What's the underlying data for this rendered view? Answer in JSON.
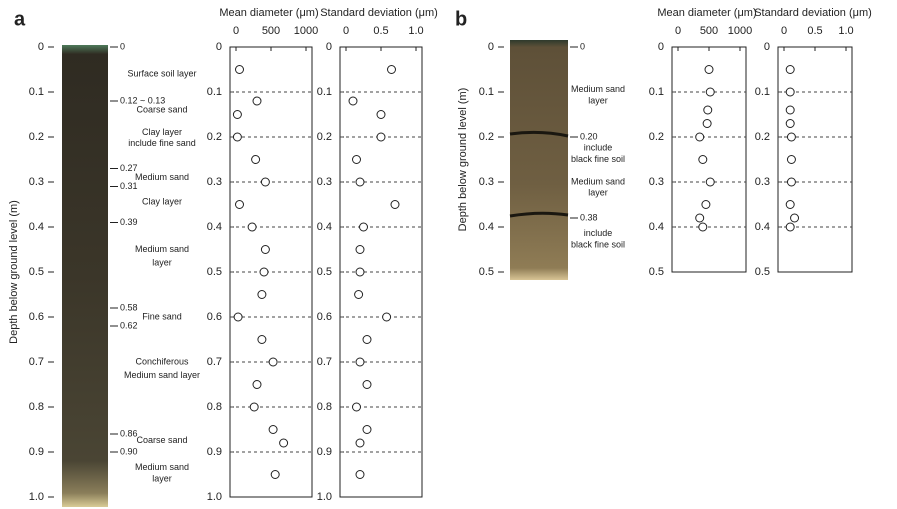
{
  "panels": [
    {
      "label": "a",
      "core": {
        "ylabel": "Depth below ground level (m)",
        "ylim": [
          0,
          1
        ],
        "yticks": [
          0,
          0.1,
          0.2,
          0.3,
          0.4,
          0.5,
          0.6,
          0.7,
          0.8,
          0.9,
          {
            "value": 1,
            "label": "1.0"
          }
        ],
        "marks": [
          {
            "value": 0,
            "label": "0"
          },
          {
            "value": 0.12,
            "label": "0.12 ~ 0.13"
          },
          {
            "value": 0.27,
            "label": "0.27"
          },
          {
            "value": 0.31,
            "label": "0.31"
          },
          {
            "value": 0.39,
            "label": "0.39"
          },
          {
            "value": 0.58,
            "label": "0.58"
          },
          {
            "value": 0.62,
            "label": "0.62"
          },
          {
            "value": 0.86,
            "label": "0.86"
          },
          {
            "value": 0.9,
            "label": "0.90"
          }
        ],
        "layers": [
          [
            "Surface soil layer"
          ],
          [
            "Coarse sand"
          ],
          [
            "Clay layer",
            "include fine sand"
          ],
          [
            "Medium sand"
          ],
          [
            "Clay layer"
          ],
          [
            "Medium sand",
            "layer"
          ],
          [
            "Fine sand"
          ],
          [
            "Conchiferous",
            "Medium sand layer"
          ],
          [
            "Coarse sand"
          ],
          [
            "Medium sand",
            "layer"
          ]
        ]
      }
    },
    {
      "label": "b",
      "core": {
        "ylabel": "Depth below ground level (m)",
        "ylim": [
          0,
          0.5
        ],
        "yticks": [
          0,
          0.1,
          0.2,
          0.3,
          0.4,
          0.5
        ],
        "marks": [
          {
            "value": 0,
            "label": "0"
          },
          {
            "value": 0.2,
            "label": "0.20"
          },
          {
            "value": 0.38,
            "label": "0.38"
          }
        ],
        "layers": [
          [
            "Medium sand",
            "layer"
          ],
          [
            "include",
            "black fine soil"
          ],
          [
            "Medium sand",
            "layer"
          ],
          [
            "include",
            "black fine soil"
          ]
        ]
      }
    }
  ],
  "chart_data": [
    {
      "type": "scatter",
      "title": "Mean diameter (μm)",
      "grid": true,
      "x": [
        50,
        300,
        20,
        20,
        280,
        420,
        50,
        230,
        420,
        400,
        370,
        30,
        370,
        530,
        300,
        260,
        530,
        680,
        560
      ],
      "y": [
        0.05,
        0.12,
        0.15,
        0.2,
        0.25,
        0.3,
        0.35,
        0.4,
        0.45,
        0.5,
        0.55,
        0.6,
        0.65,
        0.7,
        0.75,
        0.8,
        0.85,
        0.88,
        0.95
      ],
      "xlim": [
        0,
        1000
      ],
      "xticks": [
        0,
        500,
        1000
      ],
      "ylim": [
        0,
        1
      ],
      "yticks": [
        0,
        0.1,
        0.2,
        0.3,
        0.4,
        0.5,
        0.6,
        0.7,
        0.8,
        0.9,
        {
          "value": 1,
          "label": "1.0"
        }
      ]
    },
    {
      "type": "scatter",
      "title": "Standard deviation (μm)",
      "grid": true,
      "x": [
        0.65,
        0.1,
        0.5,
        0.5,
        0.15,
        0.2,
        0.7,
        0.25,
        0.2,
        0.2,
        0.18,
        0.58,
        0.3,
        0.2,
        0.3,
        0.15,
        0.3,
        0.2,
        0.2
      ],
      "y": [
        0.05,
        0.12,
        0.15,
        0.2,
        0.25,
        0.3,
        0.35,
        0.4,
        0.45,
        0.5,
        0.55,
        0.6,
        0.65,
        0.7,
        0.75,
        0.8,
        0.85,
        0.88,
        0.95
      ],
      "xlim": [
        0,
        1
      ],
      "xticks": [
        0,
        0.5,
        {
          "value": 1,
          "label": "1.0"
        }
      ],
      "ylim": [
        0,
        1
      ],
      "yticks": [
        0,
        0.1,
        0.2,
        0.3,
        0.4,
        0.5,
        0.6,
        0.7,
        0.8,
        0.9,
        {
          "value": 1,
          "label": "1.0"
        }
      ]
    },
    {
      "type": "scatter",
      "title": "Mean diameter (μm)",
      "grid": true,
      "x": [
        500,
        520,
        480,
        470,
        350,
        400,
        520,
        450,
        350,
        400
      ],
      "y": [
        0.05,
        0.1,
        0.14,
        0.17,
        0.2,
        0.25,
        0.3,
        0.35,
        0.38,
        0.4
      ],
      "xlim": [
        0,
        1000
      ],
      "xticks": [
        0,
        500,
        1000
      ],
      "ylim": [
        0,
        0.5
      ],
      "yticks": [
        0,
        0.1,
        0.2,
        0.3,
        0.4,
        0.5
      ]
    },
    {
      "type": "scatter",
      "title": "Standard deviation (μm)",
      "grid": true,
      "x": [
        0.1,
        0.1,
        0.1,
        0.1,
        0.12,
        0.12,
        0.12,
        0.1,
        0.17,
        0.1
      ],
      "y": [
        0.05,
        0.1,
        0.14,
        0.17,
        0.2,
        0.25,
        0.3,
        0.35,
        0.38,
        0.4
      ],
      "xlim": [
        0,
        1
      ],
      "xticks": [
        0,
        0.5,
        {
          "value": 1,
          "label": "1.0"
        }
      ],
      "ylim": [
        0,
        0.5
      ],
      "yticks": [
        0,
        0.1,
        0.2,
        0.3,
        0.4,
        0.5
      ]
    }
  ]
}
